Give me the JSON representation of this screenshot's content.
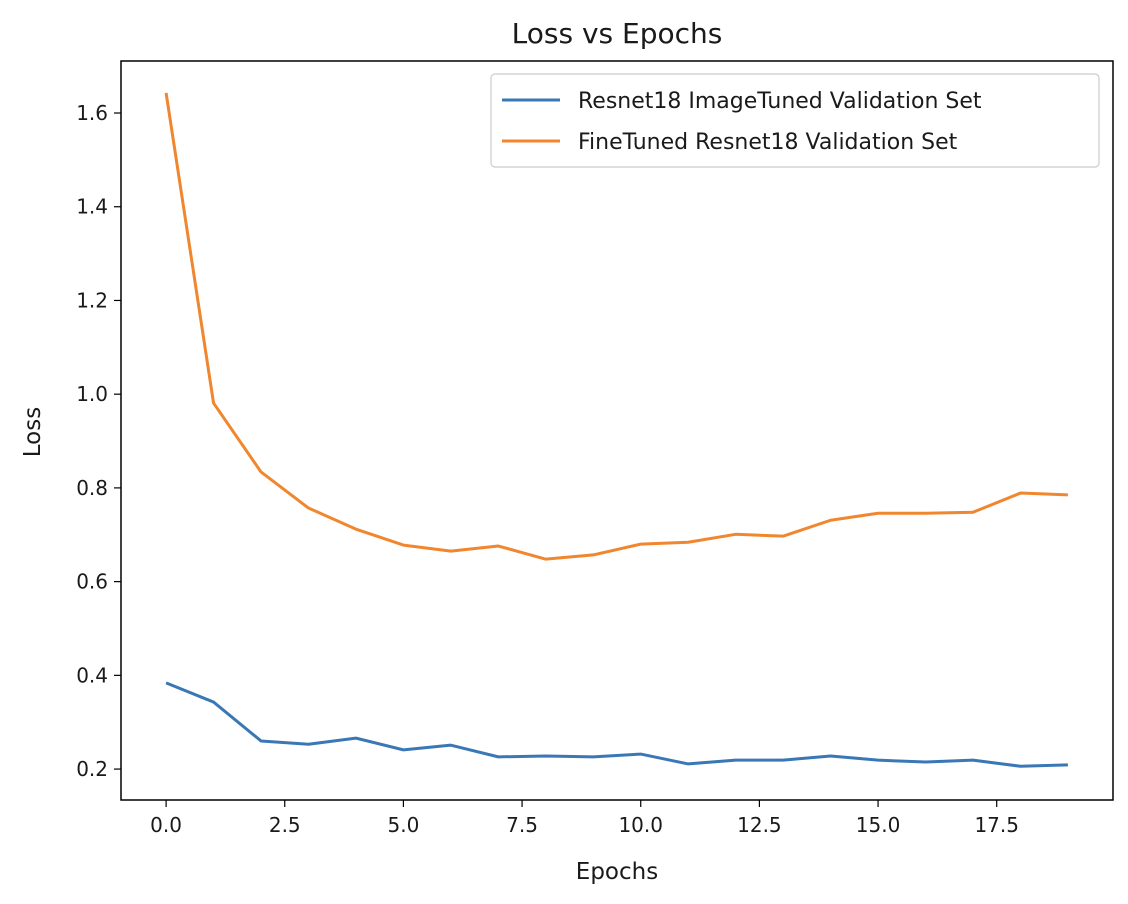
{
  "chart_data": {
    "type": "line",
    "title": "Loss vs Epochs",
    "xlabel": "Epochs",
    "ylabel": "Loss",
    "xlim": [
      -0.95,
      19.95
    ],
    "ylim": [
      0.134,
      1.711
    ],
    "xticks": [
      0.0,
      2.5,
      5.0,
      7.5,
      10.0,
      12.5,
      15.0,
      17.5
    ],
    "xtick_labels": [
      "0.0",
      "2.5",
      "5.0",
      "7.5",
      "10.0",
      "12.5",
      "15.0",
      "17.5"
    ],
    "yticks": [
      0.2,
      0.4,
      0.6,
      0.8,
      1.0,
      1.2,
      1.4,
      1.6
    ],
    "ytick_labels": [
      "0.2",
      "0.4",
      "0.6",
      "0.8",
      "1.0",
      "1.2",
      "1.4",
      "1.6"
    ],
    "grid": false,
    "legend_position": "top-right",
    "x": [
      0,
      1,
      2,
      3,
      4,
      5,
      6,
      7,
      8,
      9,
      10,
      11,
      12,
      13,
      14,
      15,
      16,
      17,
      18,
      19
    ],
    "series": [
      {
        "name": "Resnet18 ImageTuned Validation Set",
        "color": "#3a78b5",
        "values": [
          0.384,
          0.343,
          0.26,
          0.253,
          0.266,
          0.241,
          0.251,
          0.226,
          0.228,
          0.226,
          0.232,
          0.211,
          0.219,
          0.219,
          0.228,
          0.219,
          0.215,
          0.219,
          0.206,
          0.209
        ]
      },
      {
        "name": "FineTuned Resnet18 Validation Set",
        "color": "#f0862e",
        "values": [
          1.643,
          0.981,
          0.834,
          0.757,
          0.712,
          0.678,
          0.665,
          0.676,
          0.648,
          0.657,
          0.68,
          0.684,
          0.701,
          0.697,
          0.731,
          0.746,
          0.746,
          0.748,
          0.789,
          0.785
        ]
      }
    ]
  }
}
